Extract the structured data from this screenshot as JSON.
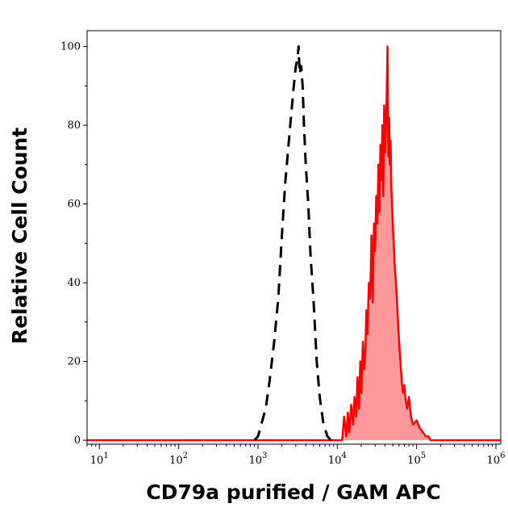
{
  "chart_data": {
    "type": "area",
    "title": "",
    "xlabel": "CD79a purified / GAM APC",
    "ylabel": "Relative Cell Count",
    "x_scale": "log",
    "xlim": [
      7,
      1150000
    ],
    "ylim": [
      -1,
      104
    ],
    "grid": false,
    "legend": "none",
    "x_ticks": [
      {
        "value": 10,
        "base": "10",
        "exp": "1"
      },
      {
        "value": 100,
        "base": "10",
        "exp": "2"
      },
      {
        "value": 1000,
        "base": "10",
        "exp": "3"
      },
      {
        "value": 10000,
        "base": "10",
        "exp": "4"
      },
      {
        "value": 100000,
        "base": "10",
        "exp": "5"
      },
      {
        "value": 1000000,
        "base": "10",
        "exp": "6"
      }
    ],
    "y_ticks": [
      {
        "value": 0,
        "label": "0"
      },
      {
        "value": 20,
        "label": "20"
      },
      {
        "value": 40,
        "label": "40"
      },
      {
        "value": 60,
        "label": "60"
      },
      {
        "value": 80,
        "label": "80"
      },
      {
        "value": 100,
        "label": "100"
      }
    ],
    "series": [
      {
        "style": "dashed",
        "color": "#000000",
        "x": [
          900,
          1000,
          1100,
          1250,
          1400,
          1600,
          1800,
          2000,
          2200,
          2500,
          2800,
          3000,
          3150,
          3250,
          3350,
          3500,
          3650,
          3800,
          4000,
          4300,
          4600,
          5000,
          5500,
          6000,
          6700,
          7500,
          8300
        ],
        "y": [
          0,
          1,
          4,
          8,
          15,
          25,
          36,
          52,
          65,
          78,
          89,
          95,
          97,
          100,
          93,
          95,
          90,
          80,
          70,
          60,
          47,
          36,
          20,
          11,
          4,
          1,
          0
        ]
      },
      {
        "style": "filled",
        "color": "#ff0000",
        "fill": "#ff9999",
        "x": [
          7,
          1000,
          10000,
          11500,
          12200,
          13000,
          13600,
          14200,
          15000,
          15800,
          16500,
          17300,
          18000,
          18800,
          19500,
          20200,
          21000,
          21800,
          22500,
          23300,
          24000,
          25000,
          26000,
          27000,
          28000,
          29000,
          30000,
          31000,
          32000,
          33000,
          34000,
          35000,
          36000,
          37000,
          38000,
          39000,
          40000,
          41000,
          42000,
          43000,
          44000,
          45000,
          46000,
          47000,
          48000,
          49000,
          50000,
          51500,
          53000,
          55000,
          57000,
          59000,
          61000,
          63000,
          65000,
          67000,
          70000,
          73000,
          76000,
          80000,
          85000,
          90000,
          100000,
          110000,
          120000,
          130000,
          140000,
          150000,
          170000,
          200000,
          300000,
          500000,
          1000000,
          1150000
        ],
        "y": [
          0,
          0,
          0,
          0,
          6,
          1,
          7,
          2,
          9,
          4,
          11,
          6,
          16,
          8,
          20,
          12,
          25,
          18,
          22,
          33,
          27,
          40,
          36,
          52,
          35,
          55,
          48,
          62,
          55,
          70,
          58,
          75,
          66,
          80,
          62,
          85,
          73,
          79,
          88,
          100,
          72,
          82,
          70,
          76,
          64,
          60,
          55,
          50,
          44,
          40,
          34,
          28,
          23,
          19,
          15,
          12,
          14,
          10,
          8,
          11,
          6,
          4,
          5,
          3,
          2,
          1,
          1,
          0,
          0,
          0,
          0,
          0,
          0,
          0
        ]
      }
    ]
  }
}
